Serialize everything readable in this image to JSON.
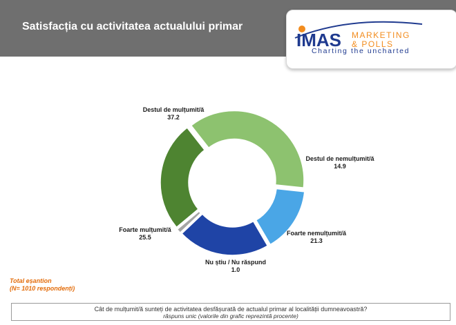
{
  "header": {
    "title": "Satisfacția cu activitatea actualului primar"
  },
  "logo": {
    "brand": "IMAS",
    "line1": "MARKETING",
    "line2": "& POLLS",
    "tagline": "Charting the uncharted"
  },
  "chart_data": {
    "type": "pie",
    "variant": "donut",
    "series": [
      {
        "name": "Destul de mulțumit/ă",
        "value": 37.2,
        "color": "#8dc26f"
      },
      {
        "name": "Destul de nemulțumit/ă",
        "value": 14.9,
        "color": "#4aa6e6"
      },
      {
        "name": "Foarte nemulțumit/ă",
        "value": 21.3,
        "color": "#1f44a6"
      },
      {
        "name": "Nu știu / Nu răspund",
        "value": 1.0,
        "color": "#a5a5a5"
      },
      {
        "name": "Foarte mulțumit/ă",
        "value": 25.5,
        "color": "#4e8431"
      }
    ]
  },
  "labels": [
    {
      "name": "Destul de mulțumit/ă",
      "value": "37.2"
    },
    {
      "name": "Destul de nemulțumit/ă",
      "value": "14.9"
    },
    {
      "name": "Foarte nemulțumit/ă",
      "value": "21.3"
    },
    {
      "name": "Nu știu / Nu răspund",
      "value": "1.0"
    },
    {
      "name": "Foarte mulțumit/ă",
      "value": "25.5"
    }
  ],
  "sample": {
    "line1": "Total eșantion",
    "line2": "(N= 1010 respondenți)"
  },
  "question": {
    "text": "Cât de mulțumit/ă sunteți de activitatea desfășurată de actualul primar al localității dumneavoastră?",
    "note": "răspuns unic (valorile din grafic reprezintă procente)"
  }
}
